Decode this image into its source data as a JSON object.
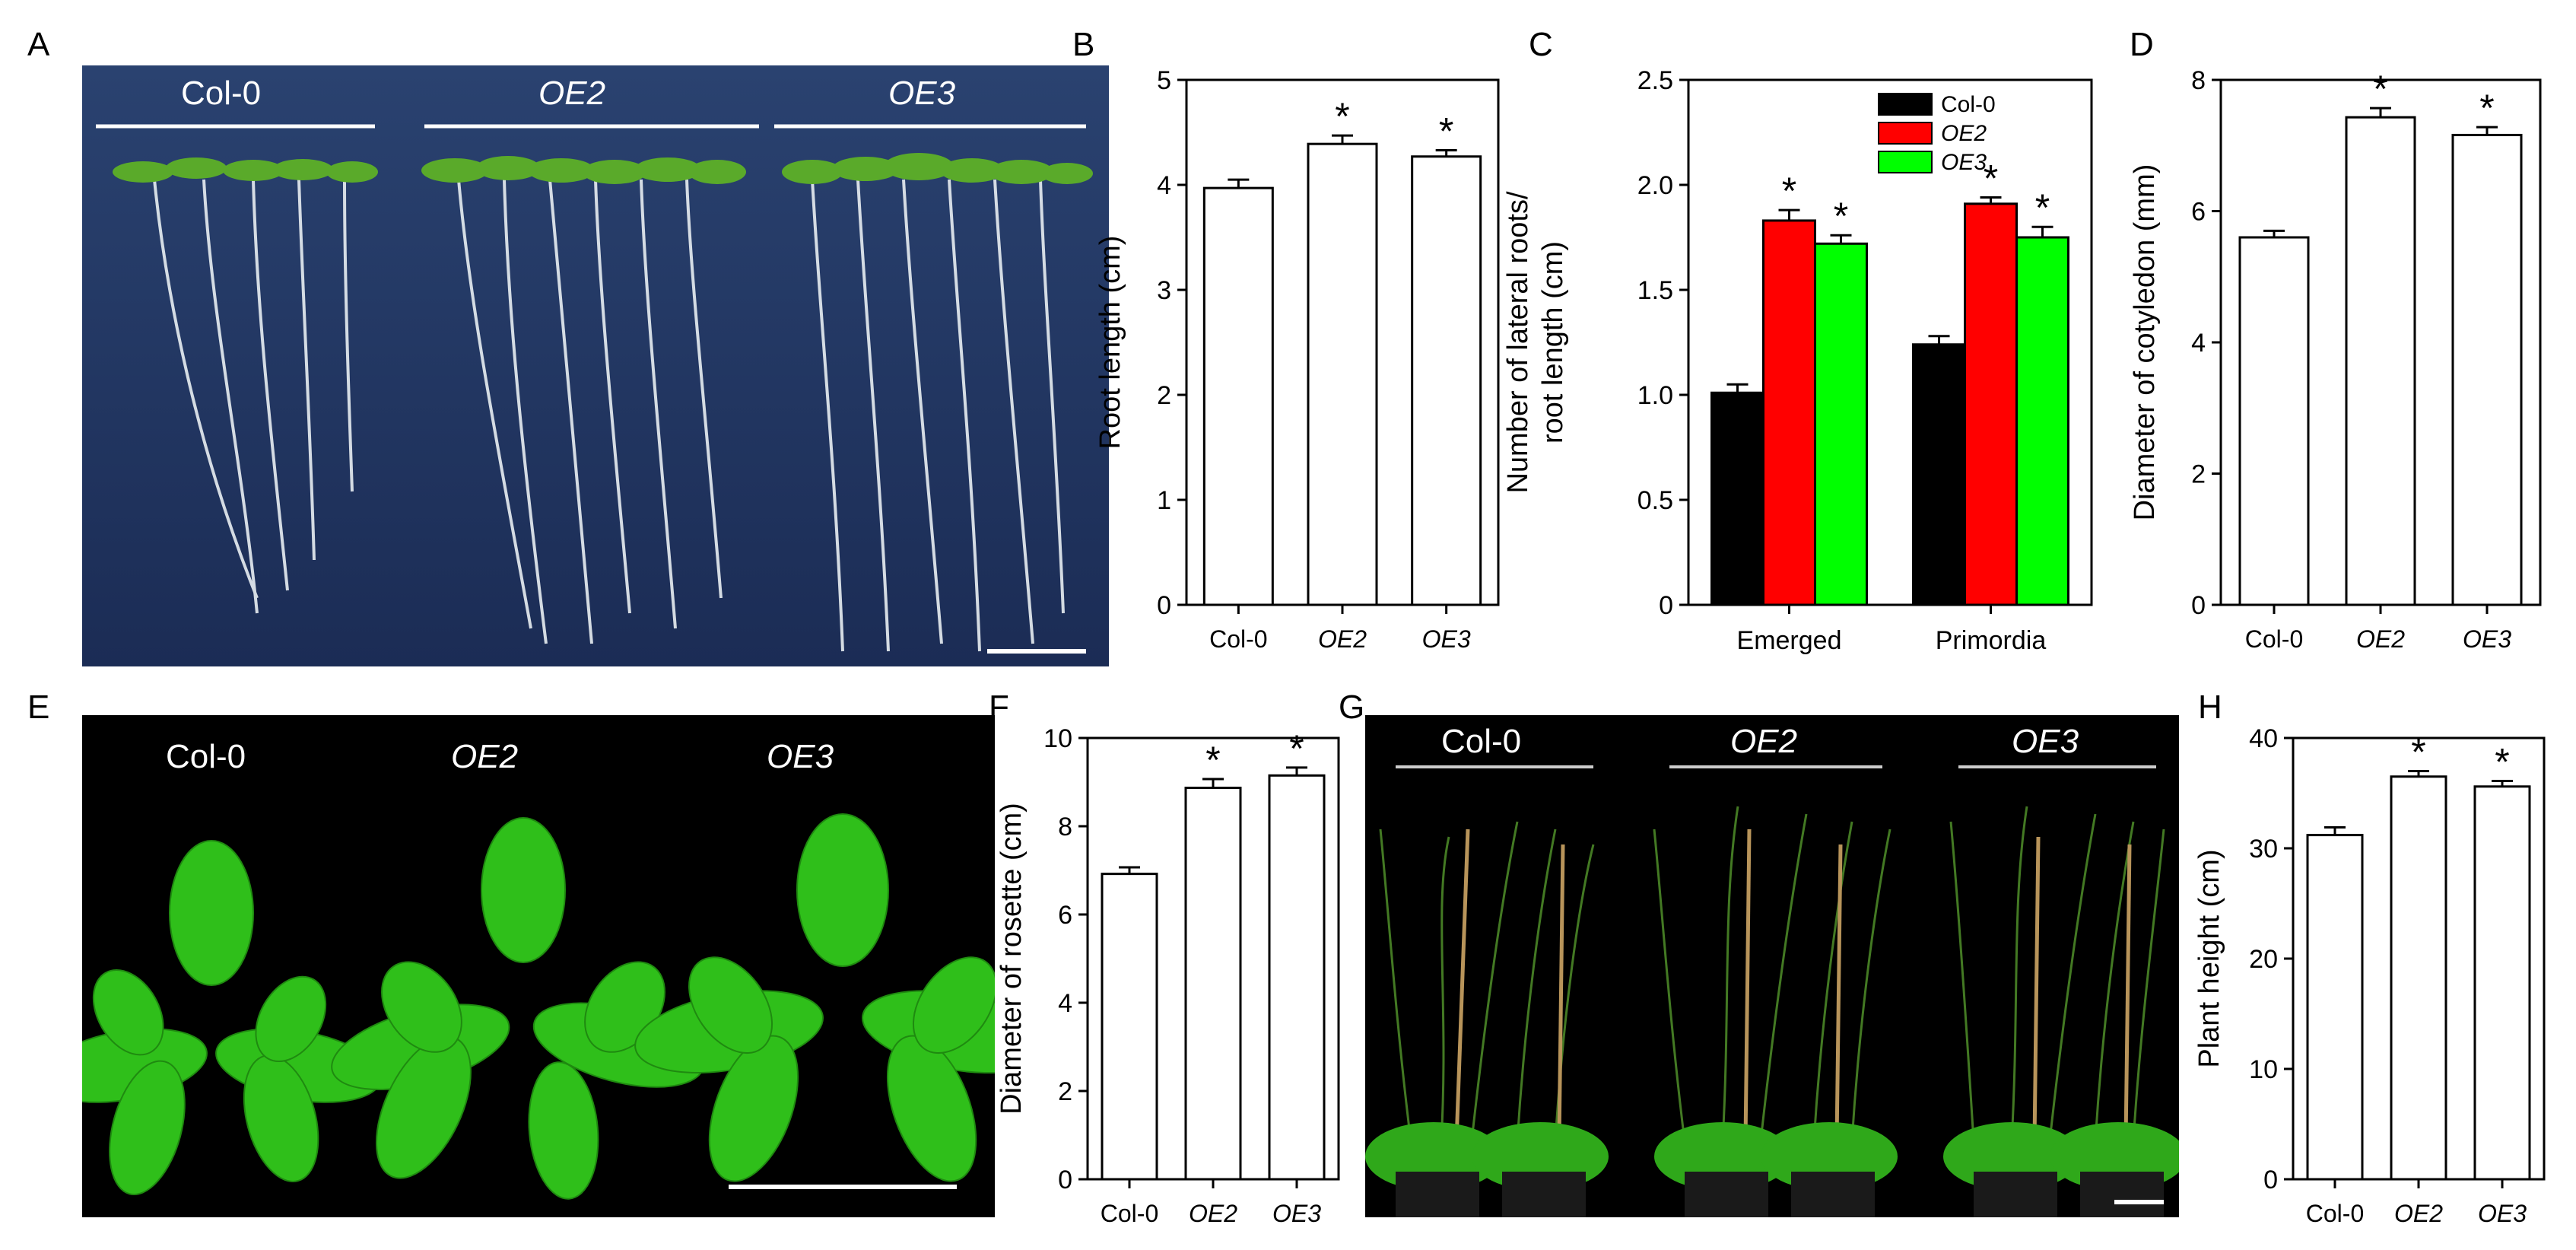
{
  "panel_letters": {
    "A": "A",
    "B": "B",
    "C": "C",
    "D": "D",
    "E": "E",
    "F": "F",
    "G": "G",
    "H": "H"
  },
  "photos": {
    "A": {
      "labels": [
        "Col-0",
        "OE2",
        "OE3"
      ],
      "italic": [
        false,
        true,
        true
      ],
      "background": "#1f3360"
    },
    "E": {
      "labels": [
        "Col-0",
        "OE2",
        "OE3"
      ],
      "italic": [
        false,
        true,
        true
      ],
      "background": "#000000"
    },
    "G": {
      "labels": [
        "Col-0",
        "OE2",
        "OE3"
      ],
      "italic": [
        false,
        true,
        true
      ],
      "background": "#000000"
    }
  },
  "colors": {
    "col0": "#000000",
    "oe2": "#ff0000",
    "oe3": "#00ff00",
    "bar_fill": "#ffffff",
    "leaf": "#2fbf1a"
  },
  "chart_data": [
    {
      "panel": "B",
      "type": "bar",
      "categories": [
        "Col-0",
        "OE2",
        "OE3"
      ],
      "italic": [
        false,
        true,
        true
      ],
      "values": [
        3.97,
        4.39,
        4.27
      ],
      "errors": [
        0.08,
        0.08,
        0.06
      ],
      "significance": [
        "",
        "*",
        "*"
      ],
      "ylabel": "Root length (cm)",
      "xlabel": "",
      "ylim": [
        0,
        5
      ],
      "yticks": [
        "0",
        "1",
        "2",
        "3",
        "4",
        "5"
      ]
    },
    {
      "panel": "C",
      "type": "bar",
      "categories": [
        "Emerged",
        "Primordia"
      ],
      "series": [
        {
          "name": "Col-0",
          "values": [
            1.01,
            1.24
          ],
          "errors": [
            0.04,
            0.04
          ],
          "significance": [
            "",
            ""
          ],
          "color": "#000000",
          "italic": false
        },
        {
          "name": "OE2",
          "values": [
            1.83,
            1.91
          ],
          "errors": [
            0.05,
            0.03
          ],
          "significance": [
            "*",
            "*"
          ],
          "color": "#ff0000",
          "italic": true
        },
        {
          "name": "OE3",
          "values": [
            1.72,
            1.75
          ],
          "errors": [
            0.04,
            0.05
          ],
          "significance": [
            "*",
            "*"
          ],
          "color": "#00ff00",
          "italic": true
        }
      ],
      "ylabel": "Number of lateral roots/\nroot length (cm)",
      "xlabel": "",
      "ylim": [
        0,
        2.5
      ],
      "yticks": [
        "0",
        "0.5",
        "1.0",
        "1.5",
        "2.0",
        "2.5"
      ],
      "legend_position": "top-right"
    },
    {
      "panel": "D",
      "type": "bar",
      "categories": [
        "Col-0",
        "OE2",
        "OE3"
      ],
      "italic": [
        false,
        true,
        true
      ],
      "values": [
        5.6,
        7.43,
        7.16
      ],
      "errors": [
        0.1,
        0.14,
        0.12
      ],
      "significance": [
        "",
        "*",
        "*"
      ],
      "ylabel": "Diameter of  cotyledon (mm)",
      "xlabel": "",
      "ylim": [
        0,
        8
      ],
      "yticks": [
        "0",
        "2",
        "4",
        "6",
        "8"
      ]
    },
    {
      "panel": "F",
      "type": "bar",
      "categories": [
        "Col-0",
        "OE2",
        "OE3"
      ],
      "italic": [
        false,
        true,
        true
      ],
      "values": [
        6.92,
        8.87,
        9.15
      ],
      "errors": [
        0.15,
        0.2,
        0.18
      ],
      "significance": [
        "",
        "*",
        "*"
      ],
      "ylabel": "Diameter of rosette (cm)",
      "xlabel": "",
      "ylim": [
        0,
        10
      ],
      "yticks": [
        "0",
        "2",
        "4",
        "6",
        "8",
        "10"
      ]
    },
    {
      "panel": "H",
      "type": "bar",
      "categories": [
        "Col-0",
        "OE2",
        "OE3"
      ],
      "italic": [
        false,
        true,
        true
      ],
      "values": [
        31.2,
        36.5,
        35.6
      ],
      "errors": [
        0.7,
        0.5,
        0.5
      ],
      "significance": [
        "",
        "*",
        "*"
      ],
      "ylabel": "Plant height (cm)",
      "xlabel": "",
      "ylim": [
        0,
        40
      ],
      "yticks": [
        "0",
        "10",
        "20",
        "30",
        "40"
      ]
    }
  ]
}
